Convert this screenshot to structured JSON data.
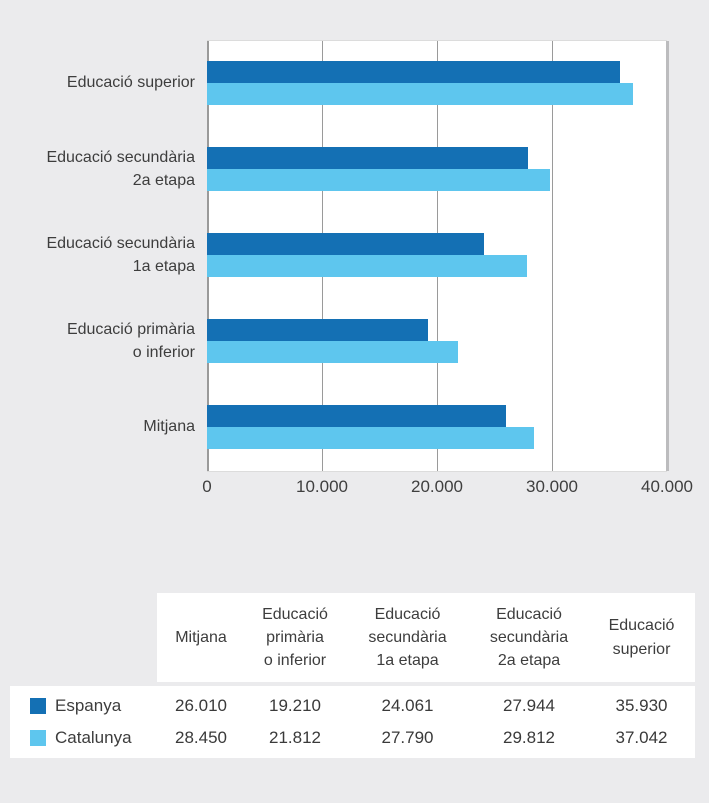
{
  "colors": {
    "espanya": "#1470b4",
    "catalunya": "#5ec6ee",
    "background": "#ebebed",
    "plot_background": "#ffffff",
    "gridline": "#9a9a9a",
    "text": "#3d3d3d"
  },
  "chart_data": {
    "type": "bar",
    "orientation": "horizontal",
    "categories": [
      "Educació superior",
      "Educació secundària\n2a etapa",
      "Educació secundària\n1a etapa",
      "Educació primària\no inferior",
      "Mitjana"
    ],
    "series": [
      {
        "name": "Espanya",
        "color": "#1470b4",
        "values": [
          35930,
          27944,
          24061,
          19210,
          26010
        ]
      },
      {
        "name": "Catalunya",
        "color": "#5ec6ee",
        "values": [
          37042,
          29812,
          27790,
          21812,
          28450
        ]
      }
    ],
    "xlim": [
      0,
      40000
    ],
    "x_ticks": [
      "0",
      "10.000",
      "20.000",
      "30.000",
      "40.000"
    ],
    "grid": true,
    "title": "",
    "xlabel": "",
    "ylabel": "",
    "legend_position": "table-below"
  },
  "table": {
    "columns": [
      "Mitjana",
      "Educació\nprimària\no inferior",
      "Educació\nsecundària\n1a etapa",
      "Educació\nsecundària\n2a etapa",
      "Educació\nsuperior"
    ],
    "rows": [
      {
        "label": "Espanya",
        "swatch_color": "#1470b4",
        "values": [
          "26.010",
          "19.210",
          "24.061",
          "27.944",
          "35.930"
        ]
      },
      {
        "label": "Catalunya",
        "swatch_color": "#5ec6ee",
        "values": [
          "28.450",
          "21.812",
          "27.790",
          "29.812",
          "37.042"
        ]
      }
    ]
  }
}
